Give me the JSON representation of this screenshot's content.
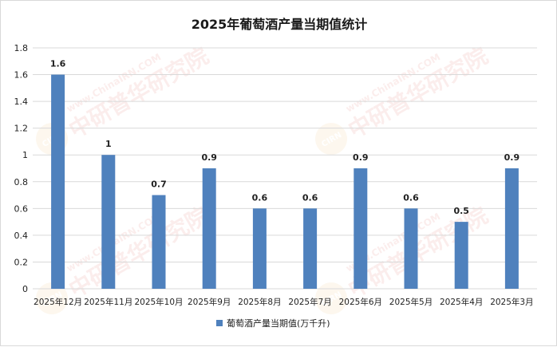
{
  "chart_data": {
    "type": "bar",
    "title": "2025年葡萄酒产量当期值统计",
    "categories": [
      "2025年12月",
      "2025年11月",
      "2025年10月",
      "2025年9月",
      "2025年8月",
      "2025年7月",
      "2025年6月",
      "2025年5月",
      "2025年4月",
      "2025年3月"
    ],
    "series": [
      {
        "name": "葡萄酒产量当期值(万千升)",
        "values": [
          1.6,
          1,
          0.7,
          0.9,
          0.6,
          0.6,
          0.9,
          0.6,
          0.5,
          0.9
        ],
        "color": "#4f81bd"
      }
    ],
    "data_labels": [
      "1.6",
      "1",
      "0.7",
      "0.9",
      "0.6",
      "0.6",
      "0.9",
      "0.6",
      "0.5",
      "0.9"
    ],
    "ylim": [
      0,
      1.8
    ],
    "yticks": [
      0,
      0.2,
      0.4,
      0.6,
      0.8,
      1,
      1.2,
      1.4,
      1.6,
      1.8
    ],
    "ytick_labels": [
      "0",
      "0.2",
      "0.4",
      "0.6",
      "0.8",
      "1",
      "1.2",
      "1.4",
      "1.6",
      "1.8"
    ],
    "grid": true,
    "legend_position": "bottom-center",
    "gridline_color": "#d9d9d9"
  },
  "watermark": {
    "text": "中研普华研究院",
    "url_text": "www.ChinaIRN.COM",
    "logo_text": "CIRN"
  }
}
